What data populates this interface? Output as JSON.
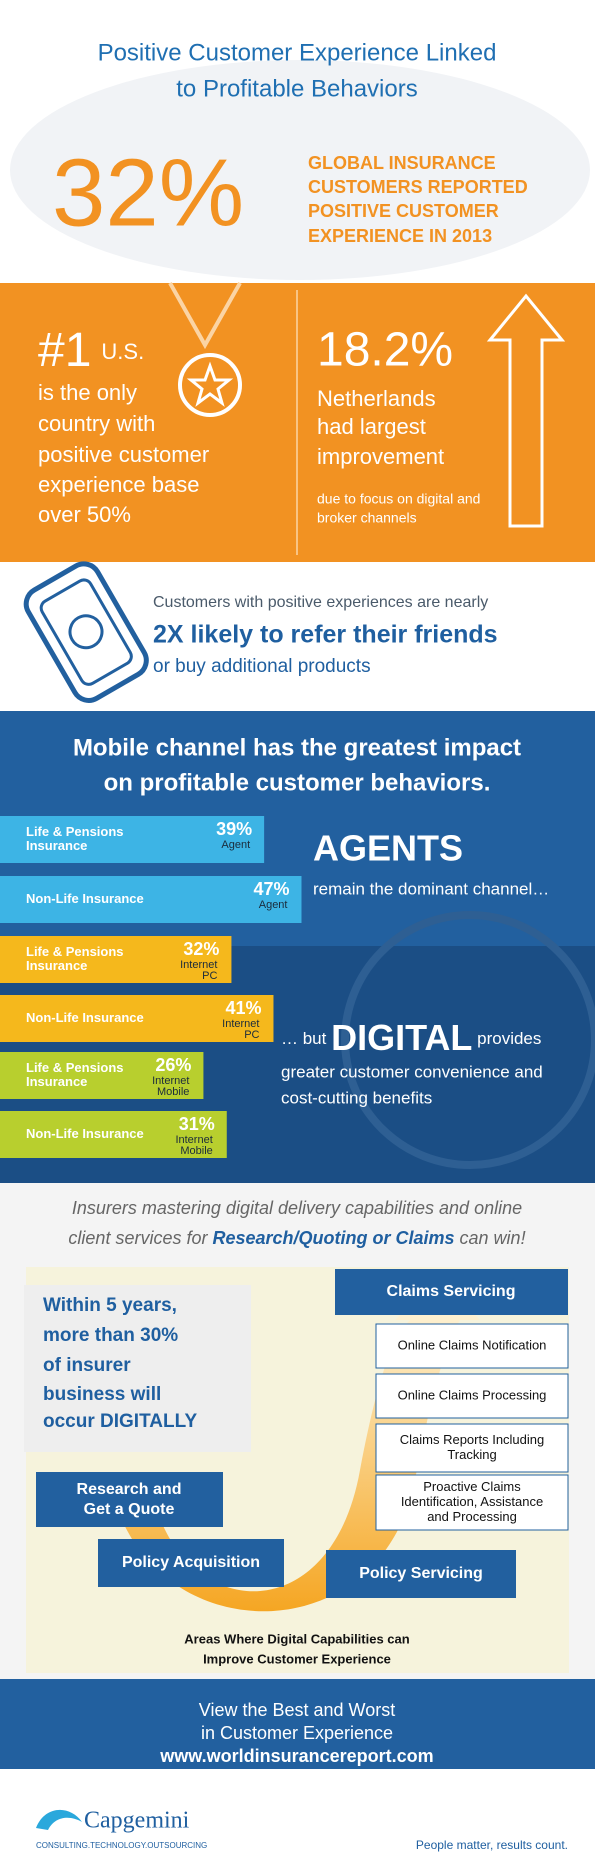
{
  "header": {
    "title_lines": [
      "Positive Customer Experience Linked",
      "to Profitable Behaviors"
    ]
  },
  "stat_32": {
    "value": "32%",
    "lines": [
      "GLOBAL INSURANCE",
      "CUSTOMERS REPORTED",
      "POSITIVE CUSTOMER",
      "EXPERIENCE IN 2013"
    ]
  },
  "stat_us": {
    "rank": "#1",
    "country": "U.S.",
    "lines": [
      "is the only",
      "country with",
      "positive customer",
      "experience base",
      "over 50%"
    ]
  },
  "stat_nl": {
    "value": "18.2%",
    "lines": [
      "Netherlands",
      "had largest",
      "improvement"
    ],
    "note_lines": [
      "due to focus on digital and",
      "broker channels"
    ]
  },
  "refer": {
    "line1": "Customers with positive experiences are nearly",
    "line2": "2X likely to refer their friends",
    "line3": "or buy additional products"
  },
  "mobile": {
    "title_lines": [
      "Mobile channel has the greatest impact",
      "on profitable customer behaviors."
    ],
    "bars": [
      {
        "label_lines": [
          "Life & Pensions",
          "Insurance"
        ],
        "value": 39,
        "value_label": "39%",
        "channel_lines": [
          "Agent"
        ],
        "color": "#3db4e5"
      },
      {
        "label_lines": [
          "Non-Life Insurance"
        ],
        "value": 47,
        "value_label": "47%",
        "channel_lines": [
          "Agent"
        ],
        "color": "#3db4e5"
      },
      {
        "label_lines": [
          "Life & Pensions",
          "Insurance"
        ],
        "value": 32,
        "value_label": "32%",
        "channel_lines": [
          "Internet",
          "PC"
        ],
        "color": "#f5b81c"
      },
      {
        "label_lines": [
          "Non-Life Insurance"
        ],
        "value": 41,
        "value_label": "41%",
        "channel_lines": [
          "Internet",
          "PC"
        ],
        "color": "#f5b81c"
      },
      {
        "label_lines": [
          "Life & Pensions",
          "Insurance"
        ],
        "value": 26,
        "value_label": "26%",
        "channel_lines": [
          "Internet",
          "Mobile"
        ],
        "color": "#b8cf2e"
      },
      {
        "label_lines": [
          "Non-Life Insurance"
        ],
        "value": 31,
        "value_label": "31%",
        "channel_lines": [
          "Internet",
          "Mobile"
        ],
        "color": "#b8cf2e"
      }
    ],
    "agents": {
      "heading": "AGENTS",
      "text": "remain the dominant channel…"
    },
    "digital": {
      "pre": "… but ",
      "heading": "DIGITAL",
      "post": " provides",
      "lines": [
        "greater customer convenience and",
        "cost-cutting benefits"
      ]
    }
  },
  "mastering": {
    "line1": "Insurers mastering digital delivery capabilities and online",
    "line2_pre": "client services for ",
    "line2_bold": "Research/Quoting or Claims",
    "line2_post": " can win!"
  },
  "within": {
    "lines": [
      "Within 5 years,",
      "more than 30%",
      "of insurer",
      "business will",
      "occur DIGITALLY"
    ]
  },
  "journey": {
    "claims_header": "Claims Servicing",
    "claims_items": [
      [
        "Online Claims Notification"
      ],
      [
        "Online Claims Processing"
      ],
      [
        "Claims Reports Including",
        "Tracking"
      ],
      [
        "Proactive Claims",
        "Identification, Assistance",
        "and Processing"
      ]
    ],
    "research": [
      "Research and",
      "Get a Quote"
    ],
    "acquisition": "Policy Acquisition",
    "servicing": "Policy Servicing",
    "caption_lines": [
      "Areas Where Digital Capabilities can",
      "Improve Customer Experience"
    ]
  },
  "cta": {
    "lines": [
      "View the Best and Worst",
      "in Customer Experience"
    ],
    "url": "www.worldinsurancereport.com"
  },
  "footer": {
    "brand": "Capgemini",
    "tagline": "CONSULTING.TECHNOLOGY.OUTSOURCING",
    "slogan": "People matter, results count."
  }
}
